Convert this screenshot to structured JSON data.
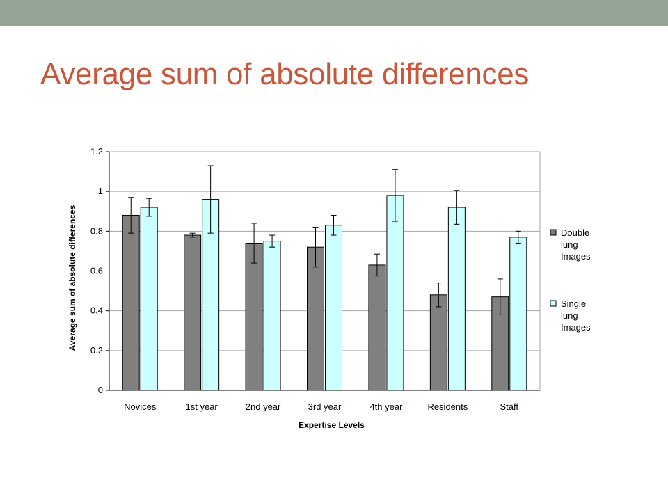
{
  "slide": {
    "title": "Average sum of absolute differences",
    "title_color": "#c9573b",
    "band_color": "#94a394"
  },
  "chart_data": {
    "type": "bar",
    "categories": [
      "Novices",
      "1st year",
      "2nd year",
      "3rd year",
      "4th year",
      "Residents",
      "Staff"
    ],
    "series": [
      {
        "name": "Double lung Images",
        "legend_lines": [
          "Double",
          "lung",
          "Images"
        ],
        "color": "#808080",
        "values": [
          0.88,
          0.78,
          0.74,
          0.72,
          0.63,
          0.48,
          0.47
        ],
        "error": [
          0.09,
          0.01,
          0.1,
          0.1,
          0.055,
          0.06,
          0.09
        ]
      },
      {
        "name": "Single lung Images",
        "legend_lines": [
          "Single",
          "lung",
          "Images"
        ],
        "color": "#ccffff",
        "values": [
          0.92,
          0.96,
          0.75,
          0.83,
          0.98,
          0.92,
          0.77
        ],
        "error": [
          0.045,
          0.17,
          0.03,
          0.05,
          0.13,
          0.085,
          0.03
        ]
      }
    ],
    "xlabel": "Expertise Levels",
    "ylabel": "Average sum of absolute differences",
    "ylim": [
      0,
      1.2
    ],
    "yticks": [
      "0",
      "0.2",
      "0.4",
      "0.6",
      "0.8",
      "1",
      "1.2"
    ],
    "grid": true,
    "legend_position": "right"
  }
}
